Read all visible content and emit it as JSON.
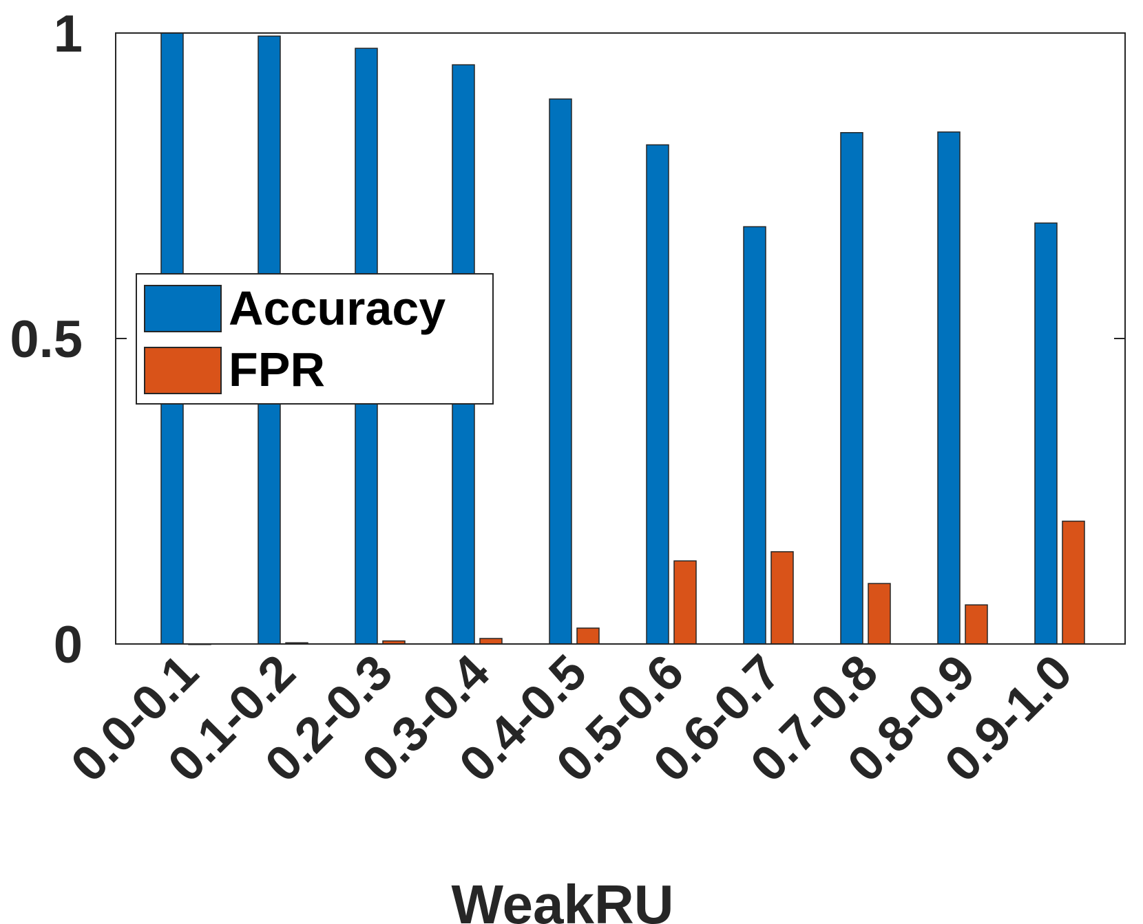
{
  "chart_data": {
    "type": "bar",
    "title": "",
    "xlabel": "WeakRU",
    "ylabel": "",
    "ylim": [
      0,
      1
    ],
    "yticks": [
      0,
      0.5,
      1
    ],
    "ytick_labels": [
      "0",
      "0.5",
      "1"
    ],
    "categories": [
      "0.0-0.1",
      "0.1-0.2",
      "0.2-0.3",
      "0.3-0.4",
      "0.4-0.5",
      "0.5-0.6",
      "0.6-0.7",
      "0.7-0.8",
      "0.8-0.9",
      "0.9-1.0"
    ],
    "series": [
      {
        "name": "Accuracy",
        "color": "#0072BD",
        "values": [
          1.0,
          0.995,
          0.975,
          0.948,
          0.892,
          0.817,
          0.683,
          0.837,
          0.838,
          0.689
        ]
      },
      {
        "name": "FPR",
        "color": "#D95319",
        "values": [
          0.0,
          0.002,
          0.005,
          0.009,
          0.026,
          0.136,
          0.151,
          0.099,
          0.064,
          0.201
        ]
      }
    ],
    "legend": {
      "placement": "center-left"
    },
    "grid": false
  }
}
